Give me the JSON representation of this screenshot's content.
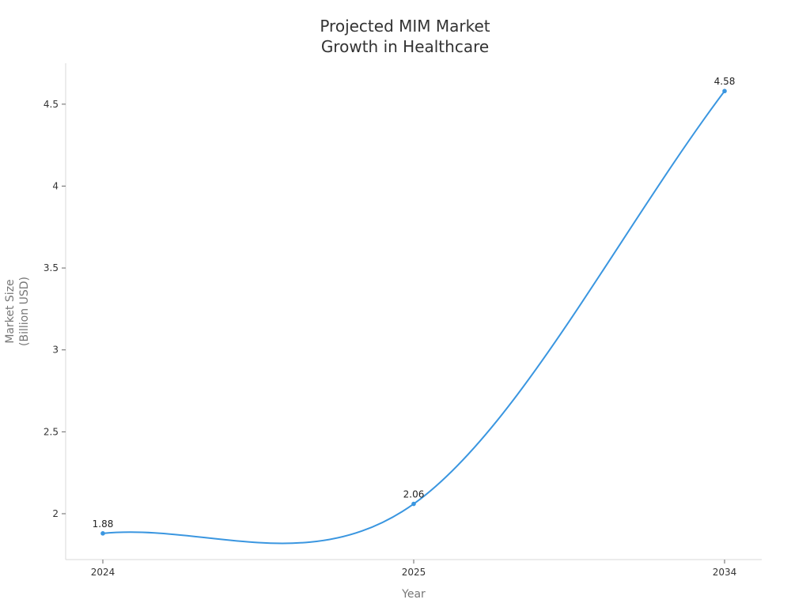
{
  "chart_data": {
    "type": "line",
    "title_lines": [
      "Projected MIM Market",
      "Growth in Healthcare"
    ],
    "xlabel": "Year",
    "ylabel_lines": [
      "Market Size",
      "(Billion USD)"
    ],
    "categories": [
      "2024",
      "2025",
      "2034"
    ],
    "series": [
      {
        "values": [
          1.88,
          2.06,
          4.58
        ],
        "color": "#3a96e0"
      }
    ],
    "data_labels": [
      "1.88",
      "2.06",
      "4.58"
    ],
    "y_ticks": [
      2,
      2.5,
      3,
      3.5,
      4,
      4.5
    ],
    "y_tick_labels": [
      "2",
      "2.5",
      "3",
      "3.5",
      "4",
      "4.5"
    ],
    "ylim": [
      1.72,
      4.75
    ],
    "grid": false,
    "curve": "smooth"
  }
}
